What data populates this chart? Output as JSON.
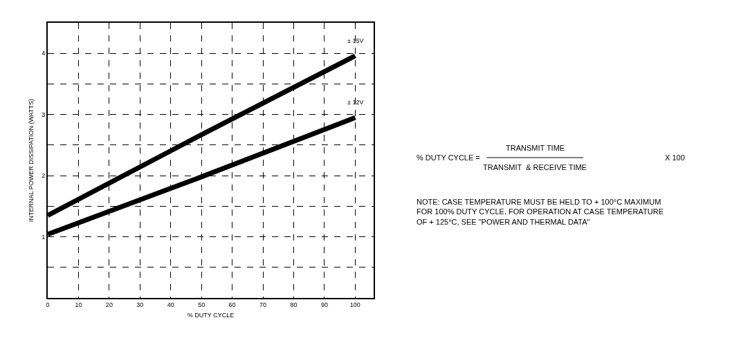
{
  "chart_data": {
    "type": "line",
    "xlabel": "% DUTY CYCLE",
    "ylabel": "INTERNAL POWER DISSIPATION (WATTS)",
    "series": [
      {
        "name": "± 15V",
        "color": "#000000",
        "x": [
          0,
          50,
          100
        ],
        "values": [
          1.35,
          2.67,
          3.96
        ]
      },
      {
        "name": "± 12V",
        "color": "#000000",
        "x": [
          0,
          50,
          100
        ],
        "values": [
          1.04,
          1.98,
          2.95
        ]
      }
    ],
    "xlim": [
      0,
      106
    ],
    "ylim": [
      0,
      4.5
    ],
    "xticks": [
      0,
      10,
      20,
      30,
      40,
      50,
      60,
      70,
      80,
      90,
      100
    ],
    "yticks": [
      {
        "value": 0.5,
        "label": null
      },
      1,
      {
        "value": 1.5,
        "label": null
      },
      2,
      {
        "value": 2.5,
        "label": null
      },
      3,
      {
        "value": 3.5,
        "label": null
      },
      4
    ],
    "grid": true,
    "legend": false,
    "marker": "none",
    "line_style": "solid",
    "annotations": [
      "% DUTY CYCLE =",
      "TRANSMIT TIME",
      "TRANSMIT  & RECEIVE TIME",
      "X 100",
      "NOTE: CASE TEMPERATURE MUST BE HELD TO + 100°C MAXIMUM FOR 100% DUTY CYCLE. FOR OPERATION AT CASE TEMPERATURE OF + 125°C, SEE \"POWER AND THERMAL DATA\""
    ]
  }
}
